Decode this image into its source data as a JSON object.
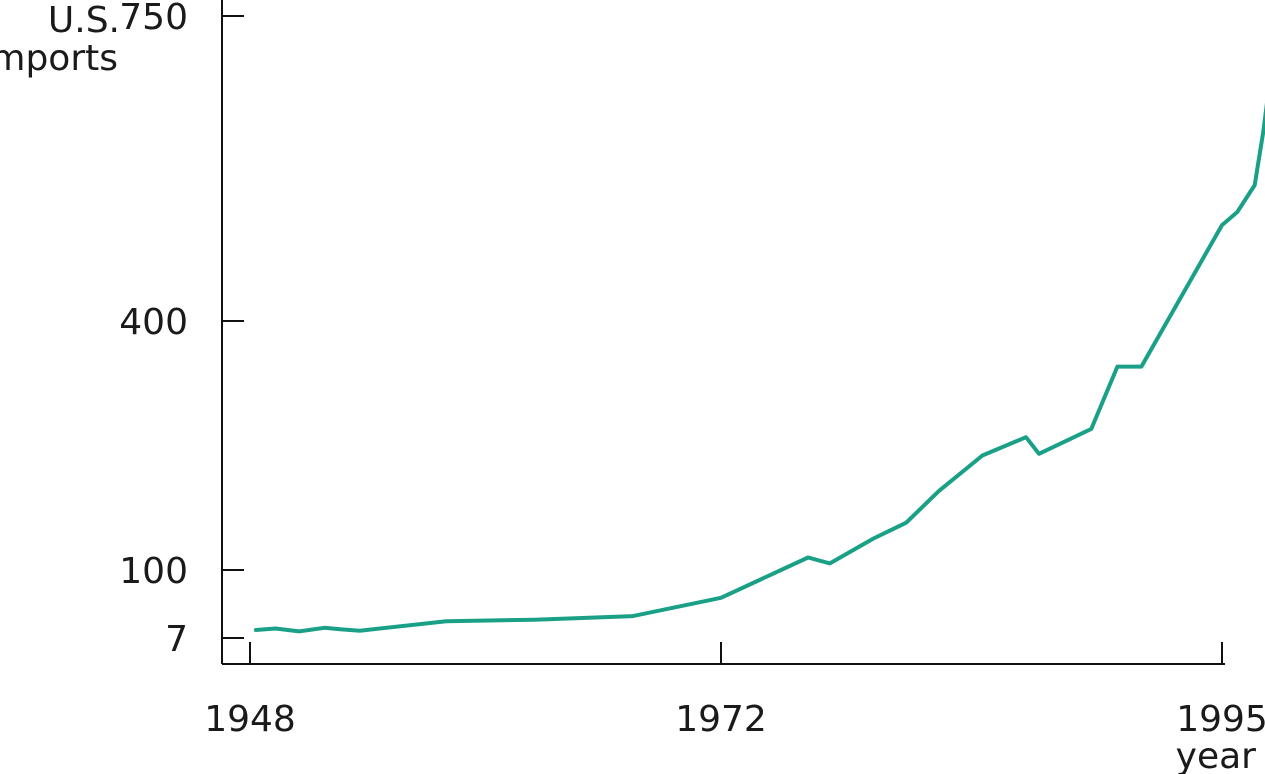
{
  "chart_data": {
    "type": "line",
    "title": "",
    "ylabel_lines": [
      "U.S.",
      "imports"
    ],
    "xlabel": "year",
    "x_tick_labels": [
      "1948",
      "1972",
      "1995"
    ],
    "y_tick_labels": [
      "750",
      "400",
      "100",
      "7"
    ],
    "line_color": "#1aa087",
    "grid": false,
    "legend": "none",
    "series": [
      {
        "x": [
          1948.3,
          1949.3,
          1950.5,
          1951.8,
          1952.6,
          1953.6,
          1958.0,
          1962.5,
          1967.5,
          1972.0,
          1976.0,
          1977.0,
          1979.0,
          1980.5,
          1982.0,
          1984.0,
          1986.0,
          1986.6,
          1989.0,
          1990.2,
          1991.3,
          1995.0,
          1995.7,
          1996.5,
          1996.9,
          1997.6
        ],
        "y": [
          18,
          20,
          16,
          21,
          19,
          17,
          30,
          32,
          37,
          62,
          115,
          108,
          138,
          157,
          195,
          238,
          260,
          240,
          270,
          345,
          345,
          510,
          525,
          556,
          618,
          755
        ]
      }
    ]
  }
}
